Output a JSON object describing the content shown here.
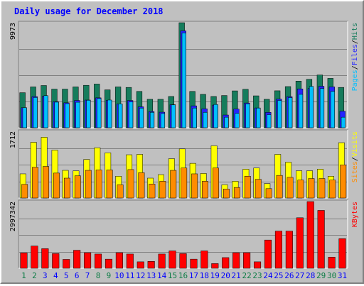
{
  "chart_data": {
    "type": "bar",
    "title": "Daily usage for December 2018",
    "categories": [
      "1",
      "2",
      "3",
      "4",
      "5",
      "6",
      "7",
      "8",
      "9",
      "10",
      "11",
      "12",
      "13",
      "14",
      "15",
      "16",
      "17",
      "18",
      "19",
      "20",
      "21",
      "22",
      "23",
      "24",
      "25",
      "26",
      "27",
      "28",
      "29",
      "30",
      "31"
    ],
    "weekend_days": [
      "1",
      "2",
      "8",
      "9",
      "15",
      "16",
      "22",
      "23",
      "29",
      "30"
    ],
    "panels": [
      {
        "id": "hits",
        "ymax_label": "9973",
        "ymax": 9973,
        "axis_label": [
          "Pages",
          "Files",
          "Hits"
        ],
        "series": [
          {
            "name": "Hits",
            "color": "#157c5c",
            "values": [
              3330,
              3880,
              4010,
              3670,
              3670,
              3880,
              4030,
              4150,
              3600,
              3880,
              3830,
              3450,
              2700,
              2700,
              2970,
              9973,
              3450,
              3170,
              2970,
              3060,
              3500,
              3650,
              3030,
              2700,
              3510,
              3910,
              4430,
              4600,
              5010,
              4690,
              3830
            ]
          },
          {
            "name": "Files",
            "color": "#2424ff",
            "values": [
              1900,
              2960,
              3010,
              2480,
              2370,
              2590,
              2630,
              2840,
              2600,
              2250,
              2590,
              1990,
              1540,
              1480,
              2190,
              9200,
              2080,
              1800,
              2150,
              1210,
              1770,
              2350,
              1880,
              1460,
              2720,
              2950,
              3690,
              3720,
              3940,
              3880,
              1570
            ]
          },
          {
            "name": "Pages",
            "color": "#00bfff",
            "values": [
              1900,
              2870,
              3050,
              2430,
              2290,
              2420,
              2610,
              2770,
              2630,
              2270,
              2450,
              1860,
              1460,
              1350,
              2170,
              9000,
              1870,
              1460,
              2210,
              1000,
              1370,
              2270,
              1870,
              1240,
              2590,
              2860,
              3170,
              3930,
              3720,
              3460,
              1000
            ]
          }
        ]
      },
      {
        "id": "visits",
        "ymax_label": "1712",
        "ymax": 1712,
        "axis_label": [
          "Sites",
          "Visits"
        ],
        "series": [
          {
            "name": "Visits",
            "color": "#ffff00",
            "values": [
              620,
              1430,
              1560,
              1230,
              710,
              700,
              990,
              1290,
              1160,
              560,
              1110,
              1120,
              510,
              600,
              1010,
              1260,
              890,
              630,
              1340,
              340,
              430,
              740,
              770,
              370,
              1120,
              920,
              700,
              700,
              740,
              560,
              1420
            ]
          },
          {
            "name": "Sites",
            "color": "#ff8c00",
            "values": [
              350,
              790,
              810,
              640,
              510,
              570,
              710,
              720,
              720,
              340,
              730,
              650,
              360,
              430,
              710,
              770,
              620,
              430,
              770,
              230,
              270,
              560,
              480,
              240,
              580,
              530,
              460,
              500,
              500,
              460,
              850
            ]
          }
        ]
      },
      {
        "id": "kbytes",
        "ymax_label": "2997342",
        "ymax": 2997342,
        "axis_label": [
          "KBytes"
        ],
        "series": [
          {
            "name": "KBytes",
            "color": "#ff0000",
            "values": [
              690000,
              1000000,
              880000,
              660000,
              400000,
              810000,
              700000,
              640000,
              410000,
              700000,
              640000,
              290000,
              310000,
              640000,
              780000,
              660000,
              410000,
              780000,
              210000,
              480000,
              700000,
              700000,
              290000,
              1270000,
              1670000,
              1670000,
              2270000,
              2997342,
              2600000,
              500000,
              1330000
            ]
          }
        ]
      }
    ]
  },
  "colors": {
    "title": "#0000ff",
    "weekday_label": "#0000ff",
    "weekend_label": "#0c7c45",
    "panel_bg": "#c0c0c0",
    "gridline": "#808080"
  }
}
